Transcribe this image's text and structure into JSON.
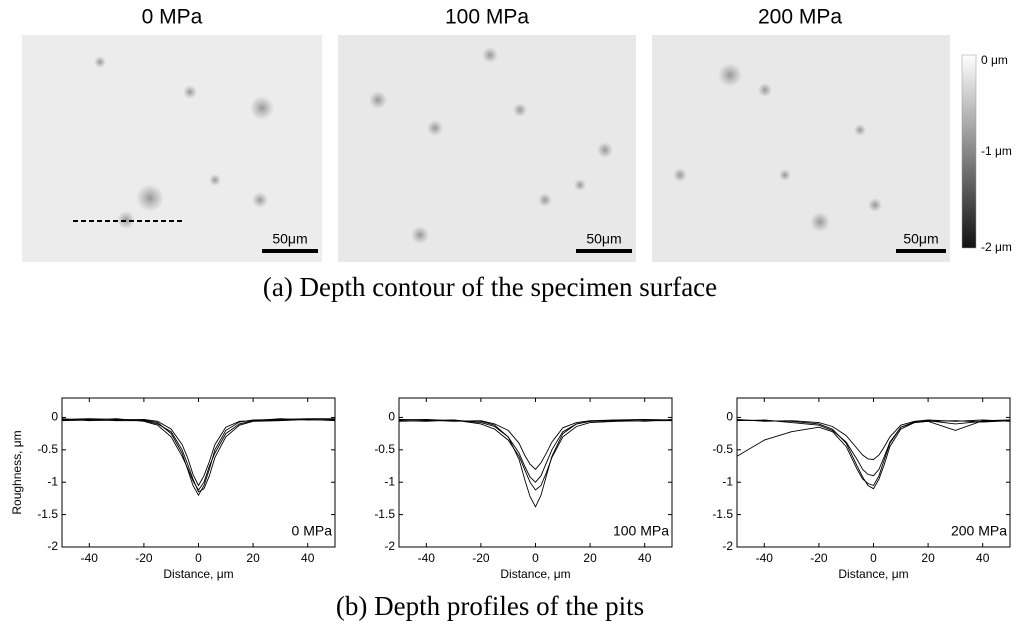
{
  "panels": [
    {
      "title": "0 MPa",
      "scale_bar": "50μm"
    },
    {
      "title": "100 MPa",
      "scale_bar": "50μm"
    },
    {
      "title": "200 MPa",
      "scale_bar": "50μm"
    }
  ],
  "colorbar": {
    "labels": [
      "0 μm",
      "-1 μm",
      "-2 μm"
    ]
  },
  "captions": [
    "(a) Depth contour of the specimen surface",
    "(b) Depth profiles of the pits"
  ],
  "chart_data": [
    {
      "type": "line",
      "xlabel": "Distance, μm",
      "ylabel": "Roughness, μm",
      "annotation": "0 MPa",
      "x": [
        -50,
        -40,
        -30,
        -20,
        -15,
        -10,
        -6,
        -4,
        -2,
        0,
        2,
        4,
        6,
        10,
        15,
        20,
        30,
        40,
        50
      ],
      "series": [
        {
          "color": "#000000",
          "values": [
            -0.03,
            -0.02,
            -0.03,
            -0.04,
            -0.08,
            -0.25,
            -0.55,
            -0.8,
            -1.05,
            -1.2,
            -1.05,
            -0.8,
            -0.5,
            -0.2,
            -0.07,
            -0.04,
            -0.03,
            -0.02,
            -0.02
          ]
        },
        {
          "color": "#000000",
          "values": [
            -0.05,
            -0.04,
            -0.02,
            -0.06,
            -0.12,
            -0.3,
            -0.6,
            -0.78,
            -0.98,
            -1.12,
            -1.0,
            -0.75,
            -0.55,
            -0.25,
            -0.1,
            -0.05,
            -0.04,
            -0.03,
            -0.04
          ]
        },
        {
          "color": "#000000",
          "values": [
            -0.02,
            -0.05,
            -0.04,
            -0.03,
            -0.06,
            -0.18,
            -0.42,
            -0.62,
            -0.88,
            -1.05,
            -0.9,
            -0.68,
            -0.42,
            -0.15,
            -0.06,
            -0.05,
            -0.02,
            -0.04,
            -0.03
          ]
        },
        {
          "color": "#000000",
          "values": [
            -0.04,
            -0.03,
            -0.05,
            -0.05,
            -0.1,
            -0.22,
            -0.5,
            -0.72,
            -0.95,
            -1.15,
            -1.1,
            -0.9,
            -0.62,
            -0.3,
            -0.12,
            -0.06,
            -0.05,
            -0.03,
            -0.05
          ]
        }
      ],
      "xlim": [
        -50,
        50
      ],
      "ylim": [
        -2,
        0.3
      ],
      "xticks": [
        -40,
        -20,
        0,
        20,
        40
      ],
      "yticks": [
        0,
        -0.5,
        -1,
        -1.5,
        -2
      ]
    },
    {
      "type": "line",
      "xlabel": "Distance, μm",
      "annotation": "100 MPa",
      "x": [
        -50,
        -40,
        -30,
        -20,
        -15,
        -10,
        -6,
        -4,
        -2,
        0,
        2,
        4,
        6,
        10,
        15,
        20,
        30,
        40,
        50
      ],
      "series": [
        {
          "color": "#000000",
          "values": [
            -0.04,
            -0.03,
            -0.05,
            -0.06,
            -0.12,
            -0.3,
            -0.65,
            -0.95,
            -1.22,
            -1.38,
            -1.2,
            -0.9,
            -0.6,
            -0.25,
            -0.1,
            -0.06,
            -0.04,
            -0.03,
            -0.04
          ]
        },
        {
          "color": "#000000",
          "values": [
            -0.05,
            -0.06,
            -0.04,
            -0.08,
            -0.14,
            -0.3,
            -0.55,
            -0.75,
            -0.92,
            -1.0,
            -0.9,
            -0.7,
            -0.5,
            -0.22,
            -0.1,
            -0.06,
            -0.05,
            -0.05,
            -0.04
          ]
        },
        {
          "color": "#000000",
          "values": [
            -0.03,
            -0.04,
            -0.06,
            -0.05,
            -0.1,
            -0.2,
            -0.4,
            -0.58,
            -0.72,
            -0.8,
            -0.7,
            -0.55,
            -0.38,
            -0.16,
            -0.08,
            -0.05,
            -0.04,
            -0.06,
            -0.03
          ]
        },
        {
          "color": "#000000",
          "values": [
            -0.06,
            -0.05,
            -0.04,
            -0.1,
            -0.18,
            -0.35,
            -0.6,
            -0.8,
            -1.0,
            -1.12,
            -1.05,
            -0.85,
            -0.62,
            -0.3,
            -0.14,
            -0.08,
            -0.06,
            -0.05,
            -0.05
          ]
        }
      ],
      "xlim": [
        -50,
        50
      ],
      "ylim": [
        -2,
        0.3
      ],
      "xticks": [
        -40,
        -20,
        0,
        20,
        40
      ],
      "yticks": [
        0,
        -0.5,
        -1,
        -1.5,
        -2
      ]
    },
    {
      "type": "line",
      "xlabel": "Distance, μm",
      "annotation": "200 MPa",
      "x": [
        -50,
        -40,
        -30,
        -20,
        -15,
        -10,
        -6,
        -4,
        -2,
        0,
        2,
        4,
        6,
        10,
        15,
        20,
        30,
        40,
        50
      ],
      "series": [
        {
          "color": "#000000",
          "values": [
            -0.04,
            -0.05,
            -0.06,
            -0.1,
            -0.18,
            -0.4,
            -0.75,
            -0.92,
            -1.05,
            -1.1,
            -0.95,
            -0.72,
            -0.45,
            -0.18,
            -0.08,
            -0.06,
            -0.2,
            -0.05,
            -0.04
          ]
        },
        {
          "color": "#000000",
          "values": [
            -0.05,
            -0.04,
            -0.08,
            -0.12,
            -0.2,
            -0.38,
            -0.65,
            -0.8,
            -0.88,
            -0.9,
            -0.8,
            -0.6,
            -0.38,
            -0.15,
            -0.07,
            -0.05,
            -0.1,
            -0.06,
            -0.05
          ]
        },
        {
          "color": "#000000",
          "values": [
            -0.03,
            -0.06,
            -0.05,
            -0.08,
            -0.14,
            -0.28,
            -0.48,
            -0.58,
            -0.64,
            -0.65,
            -0.58,
            -0.45,
            -0.3,
            -0.12,
            -0.06,
            -0.04,
            -0.06,
            -0.04,
            -0.06
          ]
        },
        {
          "color": "#000000",
          "values": [
            -0.6,
            -0.35,
            -0.22,
            -0.15,
            -0.22,
            -0.45,
            -0.8,
            -0.95,
            -1.02,
            -1.05,
            -0.9,
            -0.65,
            -0.4,
            -0.15,
            -0.08,
            -0.06,
            -0.05,
            -0.07,
            -0.05
          ]
        }
      ],
      "xlim": [
        -50,
        50
      ],
      "ylim": [
        -2,
        0.3
      ],
      "xticks": [
        -40,
        -20,
        0,
        20,
        40
      ],
      "yticks": [
        0,
        -0.5,
        -1,
        -1.5,
        -2
      ]
    }
  ]
}
